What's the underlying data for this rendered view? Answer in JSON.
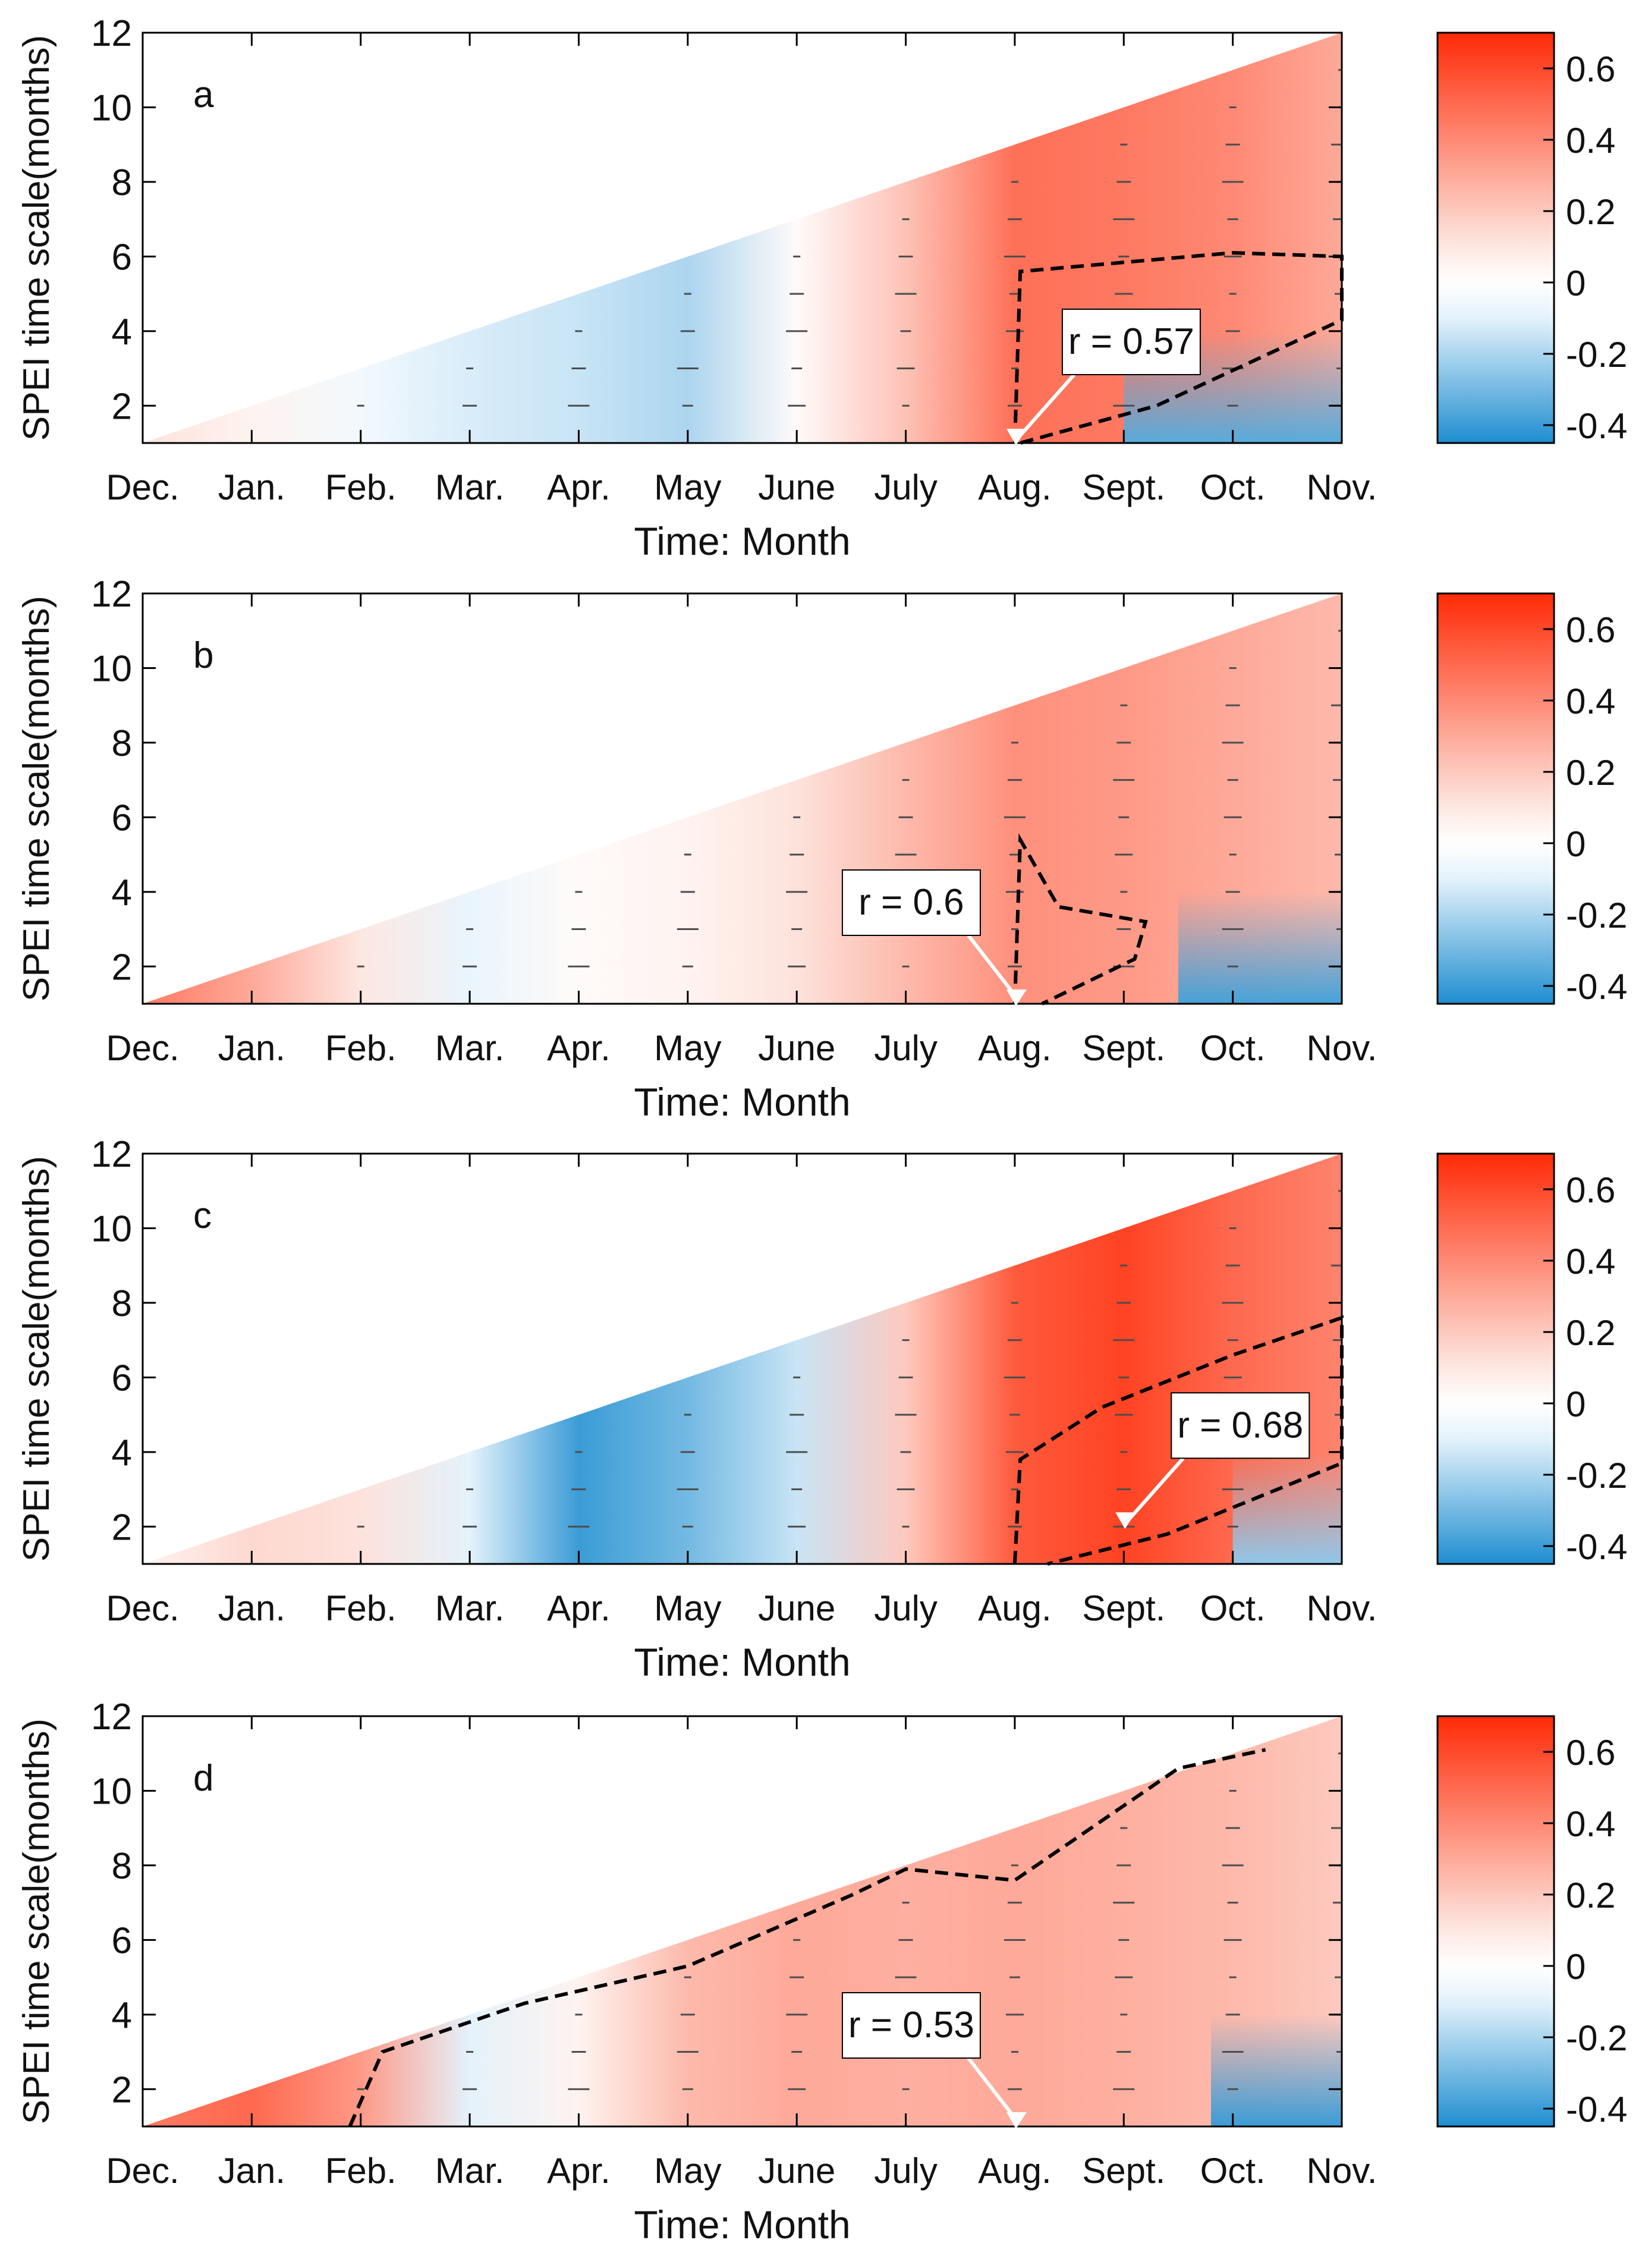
{
  "colors": {
    "neg_strong": "#1f8ed0",
    "neg_weak": "#e4f2fb",
    "zero": "#ffffff",
    "pos_weak": "#fde2db",
    "pos_strong": "#ff2a06",
    "arrow": "#4d4d4d",
    "contour": "#000000"
  },
  "colorbar": {
    "min": -0.45,
    "max": 0.7,
    "ticks": [
      0.6,
      0.4,
      0.2,
      0,
      -0.2,
      -0.4
    ],
    "tick_labels": [
      "0.6",
      "0.4",
      "0.2",
      "0",
      "-0.2",
      "-0.4"
    ]
  },
  "chart_data": [
    {
      "type": "heatmap",
      "panel_label": "a",
      "xlabel": "Time: Month",
      "ylabel": "SPEI time scale(months)",
      "categories": [
        "Dec.",
        "Jan.",
        "Feb.",
        "Mar.",
        "Apr.",
        "May",
        "June",
        "July",
        "Aug.",
        "Sept.",
        "Oct.",
        "Nov."
      ],
      "ylim": [
        1,
        12
      ],
      "yticks": [
        2,
        4,
        6,
        8,
        10,
        12
      ],
      "annotation": {
        "text": "r = 0.57",
        "month": "Aug.",
        "scale": 1
      },
      "field_anchors": [
        [
          0,
          0.12
        ],
        [
          1,
          0.05
        ],
        [
          2,
          -0.05
        ],
        [
          3,
          -0.12
        ],
        [
          4,
          -0.15
        ],
        [
          5,
          -0.2
        ],
        [
          6,
          0.02
        ],
        [
          7,
          0.22
        ],
        [
          8,
          0.48
        ],
        [
          9,
          0.45
        ],
        [
          10,
          0.4
        ],
        [
          11,
          0.3
        ]
      ],
      "low_scale_anomaly": {
        "from_month": 9,
        "value": -0.35
      },
      "significance_contour": [
        [
          8,
          1
        ],
        [
          8.05,
          5.6
        ],
        [
          10,
          6.1
        ],
        [
          11,
          6
        ],
        [
          11,
          4.3
        ],
        [
          9.3,
          2
        ],
        [
          8.05,
          1
        ]
      ]
    },
    {
      "type": "heatmap",
      "panel_label": "b",
      "xlabel": "Time: Month",
      "ylabel": "SPEI time scale(months)",
      "categories": [
        "Dec.",
        "Jan.",
        "Feb.",
        "Mar.",
        "Apr.",
        "May",
        "June",
        "July",
        "Aug.",
        "Sept.",
        "Oct.",
        "Nov."
      ],
      "ylim": [
        1,
        12
      ],
      "yticks": [
        2,
        4,
        6,
        8,
        10,
        12
      ],
      "annotation": {
        "text": "r = 0.6",
        "month": "Aug.",
        "scale": 1
      },
      "field_anchors": [
        [
          0,
          0.45
        ],
        [
          1,
          0.3
        ],
        [
          2,
          0.1
        ],
        [
          3,
          -0.08
        ],
        [
          4,
          0.02
        ],
        [
          5,
          0.05
        ],
        [
          6,
          0.12
        ],
        [
          7,
          0.25
        ],
        [
          8,
          0.38
        ],
        [
          9,
          0.35
        ],
        [
          10,
          0.3
        ],
        [
          11,
          0.25
        ]
      ],
      "low_scale_anomaly": {
        "from_month": 9.5,
        "value": -0.38
      },
      "significance_contour": [
        [
          8,
          1
        ],
        [
          8.05,
          5.4
        ],
        [
          8.4,
          3.6
        ],
        [
          9.2,
          3.2
        ],
        [
          9.1,
          2.2
        ],
        [
          8.25,
          1
        ]
      ]
    },
    {
      "type": "heatmap",
      "panel_label": "c",
      "xlabel": "Time: Month",
      "ylabel": "SPEI time scale(months)",
      "categories": [
        "Dec.",
        "Jan.",
        "Feb.",
        "Mar.",
        "Apr.",
        "May",
        "June",
        "July",
        "Aug.",
        "Sept.",
        "Oct.",
        "Nov."
      ],
      "ylim": [
        1,
        12
      ],
      "yticks": [
        2,
        4,
        6,
        8,
        10,
        12
      ],
      "annotation": {
        "text": "r = 0.68",
        "month": "Sept.",
        "scale": 2
      },
      "field_anchors": [
        [
          0,
          0.05
        ],
        [
          1,
          0.15
        ],
        [
          2,
          0.12
        ],
        [
          3,
          -0.1
        ],
        [
          4,
          -0.4
        ],
        [
          5,
          -0.3
        ],
        [
          6,
          -0.15
        ],
        [
          7,
          0.2
        ],
        [
          8,
          0.55
        ],
        [
          9,
          0.62
        ],
        [
          10,
          0.5
        ],
        [
          11,
          0.42
        ]
      ],
      "low_scale_anomaly": {
        "from_month": 10,
        "value": -0.25
      },
      "significance_contour": [
        [
          8,
          1
        ],
        [
          8.05,
          3.8
        ],
        [
          8.8,
          5.2
        ],
        [
          10,
          6.6
        ],
        [
          11,
          7.6
        ],
        [
          11,
          3.7
        ],
        [
          9.4,
          1.8
        ],
        [
          8.3,
          1
        ]
      ]
    },
    {
      "type": "heatmap",
      "panel_label": "d",
      "xlabel": "Time: Month",
      "ylabel": "SPEI time scale(months)",
      "categories": [
        "Dec.",
        "Jan.",
        "Feb.",
        "Mar.",
        "Apr.",
        "May",
        "June",
        "July",
        "Aug.",
        "Sept.",
        "Oct.",
        "Nov."
      ],
      "ylim": [
        1,
        12
      ],
      "yticks": [
        2,
        4,
        6,
        8,
        10,
        12
      ],
      "annotation": {
        "text": "r = 0.53",
        "month": "Aug.",
        "scale": 1
      },
      "field_anchors": [
        [
          0,
          0.45
        ],
        [
          1,
          0.5
        ],
        [
          2,
          0.35
        ],
        [
          3,
          -0.1
        ],
        [
          4,
          0.05
        ],
        [
          5,
          0.25
        ],
        [
          6,
          0.3
        ],
        [
          7,
          0.28
        ],
        [
          8,
          0.3
        ],
        [
          9,
          0.28
        ],
        [
          10,
          0.25
        ],
        [
          11,
          0.2
        ]
      ],
      "low_scale_anomaly": {
        "from_month": 9.8,
        "value": -0.4
      },
      "significance_contour": [
        [
          1.9,
          1
        ],
        [
          2.2,
          3
        ],
        [
          3.5,
          4.3
        ],
        [
          5,
          5.3
        ],
        [
          6.5,
          7.2
        ],
        [
          7,
          7.9
        ],
        [
          8,
          7.6
        ],
        [
          9.5,
          10.6
        ],
        [
          10.3,
          11.1
        ]
      ]
    }
  ]
}
